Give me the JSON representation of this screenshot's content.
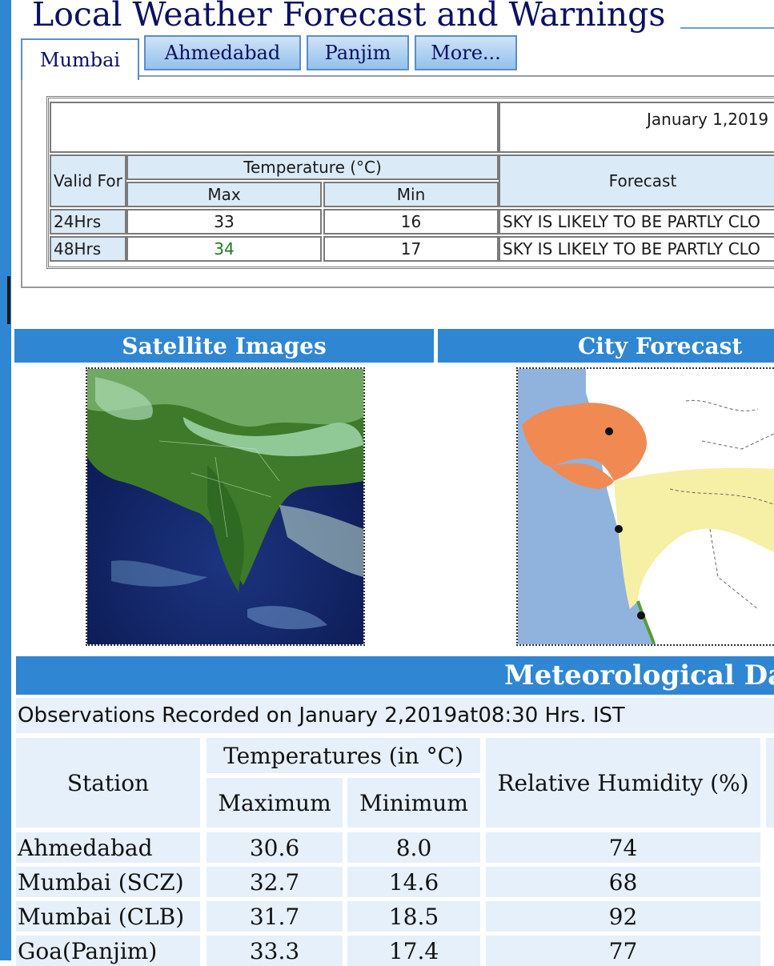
{
  "header": {
    "title": "Local Weather Forecast and Warnings"
  },
  "tabs": [
    {
      "label": "Mumbai",
      "active": true
    },
    {
      "label": "Ahmedabad",
      "active": false
    },
    {
      "label": "Panjim",
      "active": false
    },
    {
      "label": "More...",
      "active": false
    }
  ],
  "forecast": {
    "date": "January 1,2019",
    "valid_for": "Valid For",
    "temperature_header": "Temperature (°C)",
    "max": "Max",
    "min": "Min",
    "forecast_header": "Forecast",
    "rows": [
      {
        "valid": "24Hrs",
        "max": "33",
        "min": "16",
        "text": "SKY IS LIKELY TO BE PARTLY CLO"
      },
      {
        "valid": "48Hrs",
        "max": "34",
        "min": "17",
        "text": "SKY IS LIKELY TO BE PARTLY CLO"
      }
    ]
  },
  "sections": {
    "satellite": "Satellite Images",
    "city": "City Forecast"
  },
  "met": {
    "title": "Meteorological Da",
    "observation": "Observations Recorded on January 2,2019at08:30 Hrs. IST",
    "station_header": "Station",
    "temps_header": "Temperatures (in °C)",
    "maximum": "Maximum",
    "minimum": "Minimum",
    "humidity_header": "Relative Humidity (%)",
    "rows": [
      {
        "station": "Ahmedabad",
        "max": "30.6",
        "min": "8.0",
        "rh": "74"
      },
      {
        "station": "Mumbai (SCZ)",
        "max": "32.7",
        "min": "14.6",
        "rh": "68"
      },
      {
        "station": "Mumbai (CLB)",
        "max": "31.7",
        "min": "18.5",
        "rh": "92"
      },
      {
        "station": "Goa(Panjim)",
        "max": "33.3",
        "min": "17.4",
        "rh": "77"
      }
    ]
  },
  "colors": {
    "accent": "#2f86d3",
    "title": "#0b1060",
    "green_value": "#1e7a1e"
  }
}
